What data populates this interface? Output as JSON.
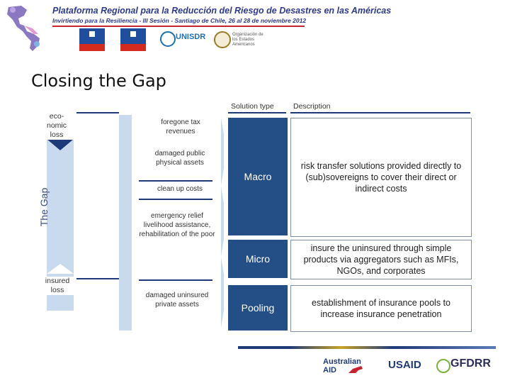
{
  "header": {
    "title": "Plataforma Regional para la Reducción del Riesgo de Desastres en las Américas",
    "subtitle": "Invirtiendo para la Resiliencia - III Sesión - Santiago de Chile, 26 al 28 de noviembre 2012",
    "unisdr": "UNISDR",
    "oea": "Organización de los Estados Americanos"
  },
  "slide": {
    "title": "Closing the Gap",
    "gap_label": "The Gap",
    "economic_loss": "eco-\nnomic\nloss",
    "insured_loss": "insured\nloss"
  },
  "components": [
    {
      "label": "foregone tax revenues"
    },
    {
      "label": "damaged public physical assets"
    },
    {
      "label": "clean up costs"
    },
    {
      "label": "emergency relief livelihood assistance, rehabilitation of the poor"
    },
    {
      "label": "damaged uninsured private assets"
    }
  ],
  "table": {
    "col_solution": "Solution type",
    "col_description": "Description",
    "rows": [
      {
        "solution": "Macro",
        "description": "risk transfer solutions provided directly to (sub)sovereigns to cover their direct or indirect costs"
      },
      {
        "solution": "Micro",
        "description": "insure the uninsured through simple products via aggregators such as MFIs, NGOs, and corporates"
      },
      {
        "solution": "Pooling",
        "description": "establishment of insurance pools to increase insurance penetration"
      }
    ]
  },
  "footer": {
    "australian_aid": "Australian AID",
    "usaid": "USAID",
    "gfdrr": "GFDRR"
  },
  "colors": {
    "navy": "#1e3a78",
    "solution_fill": "#244f86",
    "gap_fill": "#c9d9ee"
  }
}
